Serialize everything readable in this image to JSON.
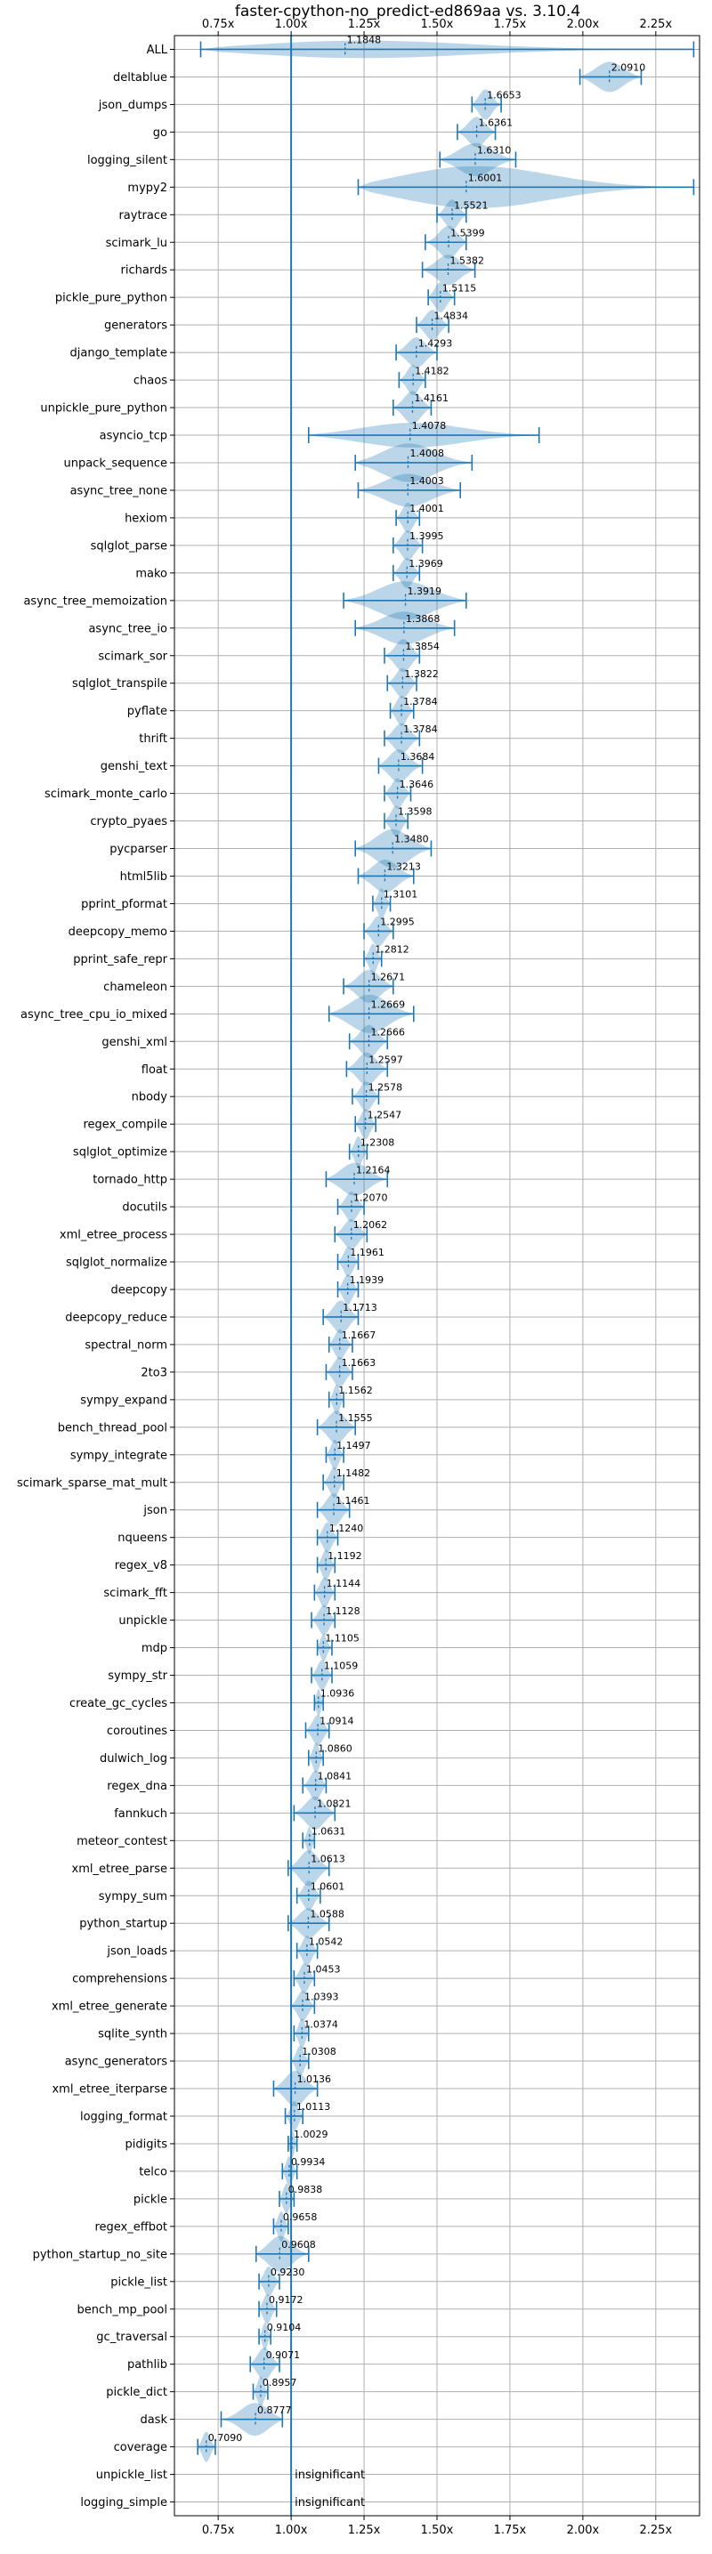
{
  "chart_data": {
    "type": "violin",
    "title": "faster-cpython-no_predict-ed869aa vs. 3.10.4",
    "xlim": [
      0.6,
      2.4
    ],
    "xticks": [
      {
        "value": 0.75,
        "label": "0.75x"
      },
      {
        "value": 1.0,
        "label": "1.00x"
      },
      {
        "value": 1.25,
        "label": "1.25x"
      },
      {
        "value": 1.5,
        "label": "1.50x"
      },
      {
        "value": 1.75,
        "label": "1.75x"
      },
      {
        "value": 2.0,
        "label": "2.00x"
      },
      {
        "value": 2.25,
        "label": "2.25x"
      }
    ],
    "reference_line": 1.0,
    "grid": true,
    "color": "#1f77b4",
    "benchmarks": [
      {
        "name": "ALL",
        "mean": 1.1848,
        "label": "1.1848",
        "min": 0.69,
        "max": 2.38,
        "width": 0.34
      },
      {
        "name": "deltablue",
        "mean": 2.091,
        "label": "2.0910",
        "min": 1.99,
        "max": 2.2,
        "width": 0.55
      },
      {
        "name": "json_dumps",
        "mean": 1.6653,
        "label": "1.6653",
        "min": 1.62,
        "max": 1.72,
        "width": 0.55
      },
      {
        "name": "go",
        "mean": 1.6361,
        "label": "1.6361",
        "min": 1.57,
        "max": 1.7,
        "width": 0.55
      },
      {
        "name": "logging_silent",
        "mean": 1.631,
        "label": "1.6310",
        "min": 1.51,
        "max": 1.77,
        "width": 0.6
      },
      {
        "name": "mypy2",
        "mean": 1.6001,
        "label": "1.6001",
        "min": 1.23,
        "max": 2.38,
        "width": 0.8
      },
      {
        "name": "raytrace",
        "mean": 1.5521,
        "label": "1.5521",
        "min": 1.5,
        "max": 1.6,
        "width": 0.55
      },
      {
        "name": "scimark_lu",
        "mean": 1.5399,
        "label": "1.5399",
        "min": 1.46,
        "max": 1.6,
        "width": 0.6
      },
      {
        "name": "richards",
        "mean": 1.5382,
        "label": "1.5382",
        "min": 1.45,
        "max": 1.63,
        "width": 0.55
      },
      {
        "name": "pickle_pure_python",
        "mean": 1.5115,
        "label": "1.5115",
        "min": 1.47,
        "max": 1.56,
        "width": 0.55
      },
      {
        "name": "generators",
        "mean": 1.4834,
        "label": "1.4834",
        "min": 1.43,
        "max": 1.54,
        "width": 0.55
      },
      {
        "name": "django_template",
        "mean": 1.4293,
        "label": "1.4293",
        "min": 1.36,
        "max": 1.5,
        "width": 0.55
      },
      {
        "name": "chaos",
        "mean": 1.4182,
        "label": "1.4182",
        "min": 1.37,
        "max": 1.46,
        "width": 0.55
      },
      {
        "name": "unpickle_pure_python",
        "mean": 1.4161,
        "label": "1.4161",
        "min": 1.35,
        "max": 1.48,
        "width": 0.6
      },
      {
        "name": "asyncio_tcp",
        "mean": 1.4078,
        "label": "1.4078",
        "min": 1.06,
        "max": 1.85,
        "width": 0.45
      },
      {
        "name": "unpack_sequence",
        "mean": 1.4008,
        "label": "1.4008",
        "min": 1.22,
        "max": 1.62,
        "width": 0.7
      },
      {
        "name": "async_tree_none",
        "mean": 1.4003,
        "label": "1.4003",
        "min": 1.23,
        "max": 1.58,
        "width": 0.6
      },
      {
        "name": "hexiom",
        "mean": 1.4001,
        "label": "1.4001",
        "min": 1.36,
        "max": 1.44,
        "width": 0.55
      },
      {
        "name": "sqlglot_parse",
        "mean": 1.3995,
        "label": "1.3995",
        "min": 1.35,
        "max": 1.45,
        "width": 0.55
      },
      {
        "name": "mako",
        "mean": 1.3969,
        "label": "1.3969",
        "min": 1.35,
        "max": 1.44,
        "width": 0.55
      },
      {
        "name": "async_tree_memoization",
        "mean": 1.3919,
        "label": "1.3919",
        "min": 1.18,
        "max": 1.6,
        "width": 0.7
      },
      {
        "name": "async_tree_io",
        "mean": 1.3868,
        "label": "1.3868",
        "min": 1.22,
        "max": 1.56,
        "width": 0.6
      },
      {
        "name": "scimark_sor",
        "mean": 1.3854,
        "label": "1.3854",
        "min": 1.32,
        "max": 1.44,
        "width": 0.6
      },
      {
        "name": "sqlglot_transpile",
        "mean": 1.3822,
        "label": "1.3822",
        "min": 1.33,
        "max": 1.43,
        "width": 0.55
      },
      {
        "name": "pyflate",
        "mean": 1.3784,
        "label": "1.3784",
        "min": 1.34,
        "max": 1.42,
        "width": 0.55
      },
      {
        "name": "thrift",
        "mean": 1.3784,
        "label": "1.3784",
        "min": 1.32,
        "max": 1.44,
        "width": 0.55
      },
      {
        "name": "genshi_text",
        "mean": 1.3684,
        "label": "1.3684",
        "min": 1.3,
        "max": 1.45,
        "width": 0.6
      },
      {
        "name": "scimark_monte_carlo",
        "mean": 1.3646,
        "label": "1.3646",
        "min": 1.32,
        "max": 1.41,
        "width": 0.55
      },
      {
        "name": "crypto_pyaes",
        "mean": 1.3598,
        "label": "1.3598",
        "min": 1.32,
        "max": 1.4,
        "width": 0.55
      },
      {
        "name": "pycparser",
        "mean": 1.348,
        "label": "1.3480",
        "min": 1.22,
        "max": 1.48,
        "width": 0.7
      },
      {
        "name": "html5lib",
        "mean": 1.3213,
        "label": "1.3213",
        "min": 1.23,
        "max": 1.42,
        "width": 0.6
      },
      {
        "name": "pprint_pformat",
        "mean": 1.3101,
        "label": "1.3101",
        "min": 1.28,
        "max": 1.34,
        "width": 0.55
      },
      {
        "name": "deepcopy_memo",
        "mean": 1.2995,
        "label": "1.2995",
        "min": 1.25,
        "max": 1.35,
        "width": 0.55
      },
      {
        "name": "pprint_safe_repr",
        "mean": 1.2812,
        "label": "1.2812",
        "min": 1.25,
        "max": 1.31,
        "width": 0.55
      },
      {
        "name": "chameleon",
        "mean": 1.2671,
        "label": "1.2671",
        "min": 1.18,
        "max": 1.35,
        "width": 0.6
      },
      {
        "name": "async_tree_cpu_io_mixed",
        "mean": 1.2669,
        "label": "1.2669",
        "min": 1.13,
        "max": 1.42,
        "width": 0.7
      },
      {
        "name": "genshi_xml",
        "mean": 1.2666,
        "label": "1.2666",
        "min": 1.2,
        "max": 1.33,
        "width": 0.6
      },
      {
        "name": "float",
        "mean": 1.2597,
        "label": "1.2597",
        "min": 1.19,
        "max": 1.33,
        "width": 0.6
      },
      {
        "name": "nbody",
        "mean": 1.2578,
        "label": "1.2578",
        "min": 1.21,
        "max": 1.3,
        "width": 0.55
      },
      {
        "name": "regex_compile",
        "mean": 1.2547,
        "label": "1.2547",
        "min": 1.22,
        "max": 1.29,
        "width": 0.55
      },
      {
        "name": "sqlglot_optimize",
        "mean": 1.2308,
        "label": "1.2308",
        "min": 1.2,
        "max": 1.26,
        "width": 0.55
      },
      {
        "name": "tornado_http",
        "mean": 1.2164,
        "label": "1.2164",
        "min": 1.12,
        "max": 1.33,
        "width": 0.6
      },
      {
        "name": "docutils",
        "mean": 1.207,
        "label": "1.2070",
        "min": 1.16,
        "max": 1.25,
        "width": 0.55
      },
      {
        "name": "xml_etree_process",
        "mean": 1.2062,
        "label": "1.2062",
        "min": 1.15,
        "max": 1.26,
        "width": 0.55
      },
      {
        "name": "sqlglot_normalize",
        "mean": 1.1961,
        "label": "1.1961",
        "min": 1.16,
        "max": 1.23,
        "width": 0.55
      },
      {
        "name": "deepcopy",
        "mean": 1.1939,
        "label": "1.1939",
        "min": 1.16,
        "max": 1.23,
        "width": 0.55
      },
      {
        "name": "deepcopy_reduce",
        "mean": 1.1713,
        "label": "1.1713",
        "min": 1.11,
        "max": 1.23,
        "width": 0.6
      },
      {
        "name": "spectral_norm",
        "mean": 1.1667,
        "label": "1.1667",
        "min": 1.13,
        "max": 1.21,
        "width": 0.55
      },
      {
        "name": "2to3",
        "mean": 1.1663,
        "label": "1.1663",
        "min": 1.12,
        "max": 1.21,
        "width": 0.55
      },
      {
        "name": "sympy_expand",
        "mean": 1.1562,
        "label": "1.1562",
        "min": 1.13,
        "max": 1.18,
        "width": 0.55
      },
      {
        "name": "bench_thread_pool",
        "mean": 1.1555,
        "label": "1.1555",
        "min": 1.09,
        "max": 1.22,
        "width": 0.6
      },
      {
        "name": "sympy_integrate",
        "mean": 1.1497,
        "label": "1.1497",
        "min": 1.12,
        "max": 1.18,
        "width": 0.55
      },
      {
        "name": "scimark_sparse_mat_mult",
        "mean": 1.1482,
        "label": "1.1482",
        "min": 1.11,
        "max": 1.18,
        "width": 0.55
      },
      {
        "name": "json",
        "mean": 1.1461,
        "label": "1.1461",
        "min": 1.09,
        "max": 1.2,
        "width": 0.6
      },
      {
        "name": "nqueens",
        "mean": 1.124,
        "label": "1.1240",
        "min": 1.09,
        "max": 1.16,
        "width": 0.55
      },
      {
        "name": "regex_v8",
        "mean": 1.1192,
        "label": "1.1192",
        "min": 1.09,
        "max": 1.15,
        "width": 0.55
      },
      {
        "name": "scimark_fft",
        "mean": 1.1144,
        "label": "1.1144",
        "min": 1.08,
        "max": 1.15,
        "width": 0.55
      },
      {
        "name": "unpickle",
        "mean": 1.1128,
        "label": "1.1128",
        "min": 1.07,
        "max": 1.15,
        "width": 0.55
      },
      {
        "name": "mdp",
        "mean": 1.1105,
        "label": "1.1105",
        "min": 1.09,
        "max": 1.14,
        "width": 0.5
      },
      {
        "name": "sympy_str",
        "mean": 1.1059,
        "label": "1.1059",
        "min": 1.07,
        "max": 1.14,
        "width": 0.55
      },
      {
        "name": "create_gc_cycles",
        "mean": 1.0936,
        "label": "1.0936",
        "min": 1.08,
        "max": 1.11,
        "width": 0.5
      },
      {
        "name": "coroutines",
        "mean": 1.0914,
        "label": "1.0914",
        "min": 1.05,
        "max": 1.13,
        "width": 0.55
      },
      {
        "name": "dulwich_log",
        "mean": 1.086,
        "label": "1.0860",
        "min": 1.06,
        "max": 1.11,
        "width": 0.55
      },
      {
        "name": "regex_dna",
        "mean": 1.0841,
        "label": "1.0841",
        "min": 1.04,
        "max": 1.12,
        "width": 0.55
      },
      {
        "name": "fannkuch",
        "mean": 1.0821,
        "label": "1.0821",
        "min": 1.01,
        "max": 1.15,
        "width": 0.6
      },
      {
        "name": "meteor_contest",
        "mean": 1.0631,
        "label": "1.0631",
        "min": 1.04,
        "max": 1.08,
        "width": 0.5
      },
      {
        "name": "xml_etree_parse",
        "mean": 1.0613,
        "label": "1.0613",
        "min": 0.99,
        "max": 1.13,
        "width": 0.65
      },
      {
        "name": "sympy_sum",
        "mean": 1.0601,
        "label": "1.0601",
        "min": 1.02,
        "max": 1.1,
        "width": 0.55
      },
      {
        "name": "python_startup",
        "mean": 1.0588,
        "label": "1.0588",
        "min": 0.99,
        "max": 1.13,
        "width": 0.55
      },
      {
        "name": "json_loads",
        "mean": 1.0542,
        "label": "1.0542",
        "min": 1.02,
        "max": 1.09,
        "width": 0.55
      },
      {
        "name": "comprehensions",
        "mean": 1.0453,
        "label": "1.0453",
        "min": 1.01,
        "max": 1.08,
        "width": 0.55
      },
      {
        "name": "xml_etree_generate",
        "mean": 1.0393,
        "label": "1.0393",
        "min": 1.0,
        "max": 1.08,
        "width": 0.55
      },
      {
        "name": "sqlite_synth",
        "mean": 1.0374,
        "label": "1.0374",
        "min": 1.01,
        "max": 1.06,
        "width": 0.55
      },
      {
        "name": "async_generators",
        "mean": 1.0308,
        "label": "1.0308",
        "min": 1.0,
        "max": 1.06,
        "width": 0.55
      },
      {
        "name": "xml_etree_iterparse",
        "mean": 1.0136,
        "label": "1.0136",
        "min": 0.94,
        "max": 1.09,
        "width": 0.65
      },
      {
        "name": "logging_format",
        "mean": 1.0113,
        "label": "1.0113",
        "min": 0.98,
        "max": 1.04,
        "width": 0.55
      },
      {
        "name": "pidigits",
        "mean": 1.0029,
        "label": "1.0029",
        "min": 0.99,
        "max": 1.02,
        "width": 0.5
      },
      {
        "name": "telco",
        "mean": 0.9934,
        "label": "0.9934",
        "min": 0.97,
        "max": 1.02,
        "width": 0.55
      },
      {
        "name": "pickle",
        "mean": 0.9838,
        "label": "0.9838",
        "min": 0.96,
        "max": 1.01,
        "width": 0.55
      },
      {
        "name": "regex_effbot",
        "mean": 0.9658,
        "label": "0.9658",
        "min": 0.94,
        "max": 0.99,
        "width": 0.55
      },
      {
        "name": "python_startup_no_site",
        "mean": 0.9608,
        "label": "0.9608",
        "min": 0.88,
        "max": 1.06,
        "width": 0.65
      },
      {
        "name": "pickle_list",
        "mean": 0.923,
        "label": "0.9230",
        "min": 0.89,
        "max": 0.96,
        "width": 0.55
      },
      {
        "name": "bench_mp_pool",
        "mean": 0.9172,
        "label": "0.9172",
        "min": 0.89,
        "max": 0.95,
        "width": 0.55
      },
      {
        "name": "gc_traversal",
        "mean": 0.9104,
        "label": "0.9104",
        "min": 0.89,
        "max": 0.93,
        "width": 0.5
      },
      {
        "name": "pathlib",
        "mean": 0.9071,
        "label": "0.9071",
        "min": 0.86,
        "max": 0.96,
        "width": 0.6
      },
      {
        "name": "pickle_dict",
        "mean": 0.8957,
        "label": "0.8957",
        "min": 0.87,
        "max": 0.92,
        "width": 0.55
      },
      {
        "name": "dask",
        "mean": 0.8777,
        "label": "0.8777",
        "min": 0.76,
        "max": 0.97,
        "width": 0.6
      },
      {
        "name": "coverage",
        "mean": 0.709,
        "label": "0.7090",
        "min": 0.68,
        "max": 0.74,
        "width": 0.55
      },
      {
        "name": "unpickle_list",
        "insignificant": true,
        "label": "insignificant"
      },
      {
        "name": "logging_simple",
        "insignificant": true,
        "label": "insignificant"
      }
    ]
  }
}
